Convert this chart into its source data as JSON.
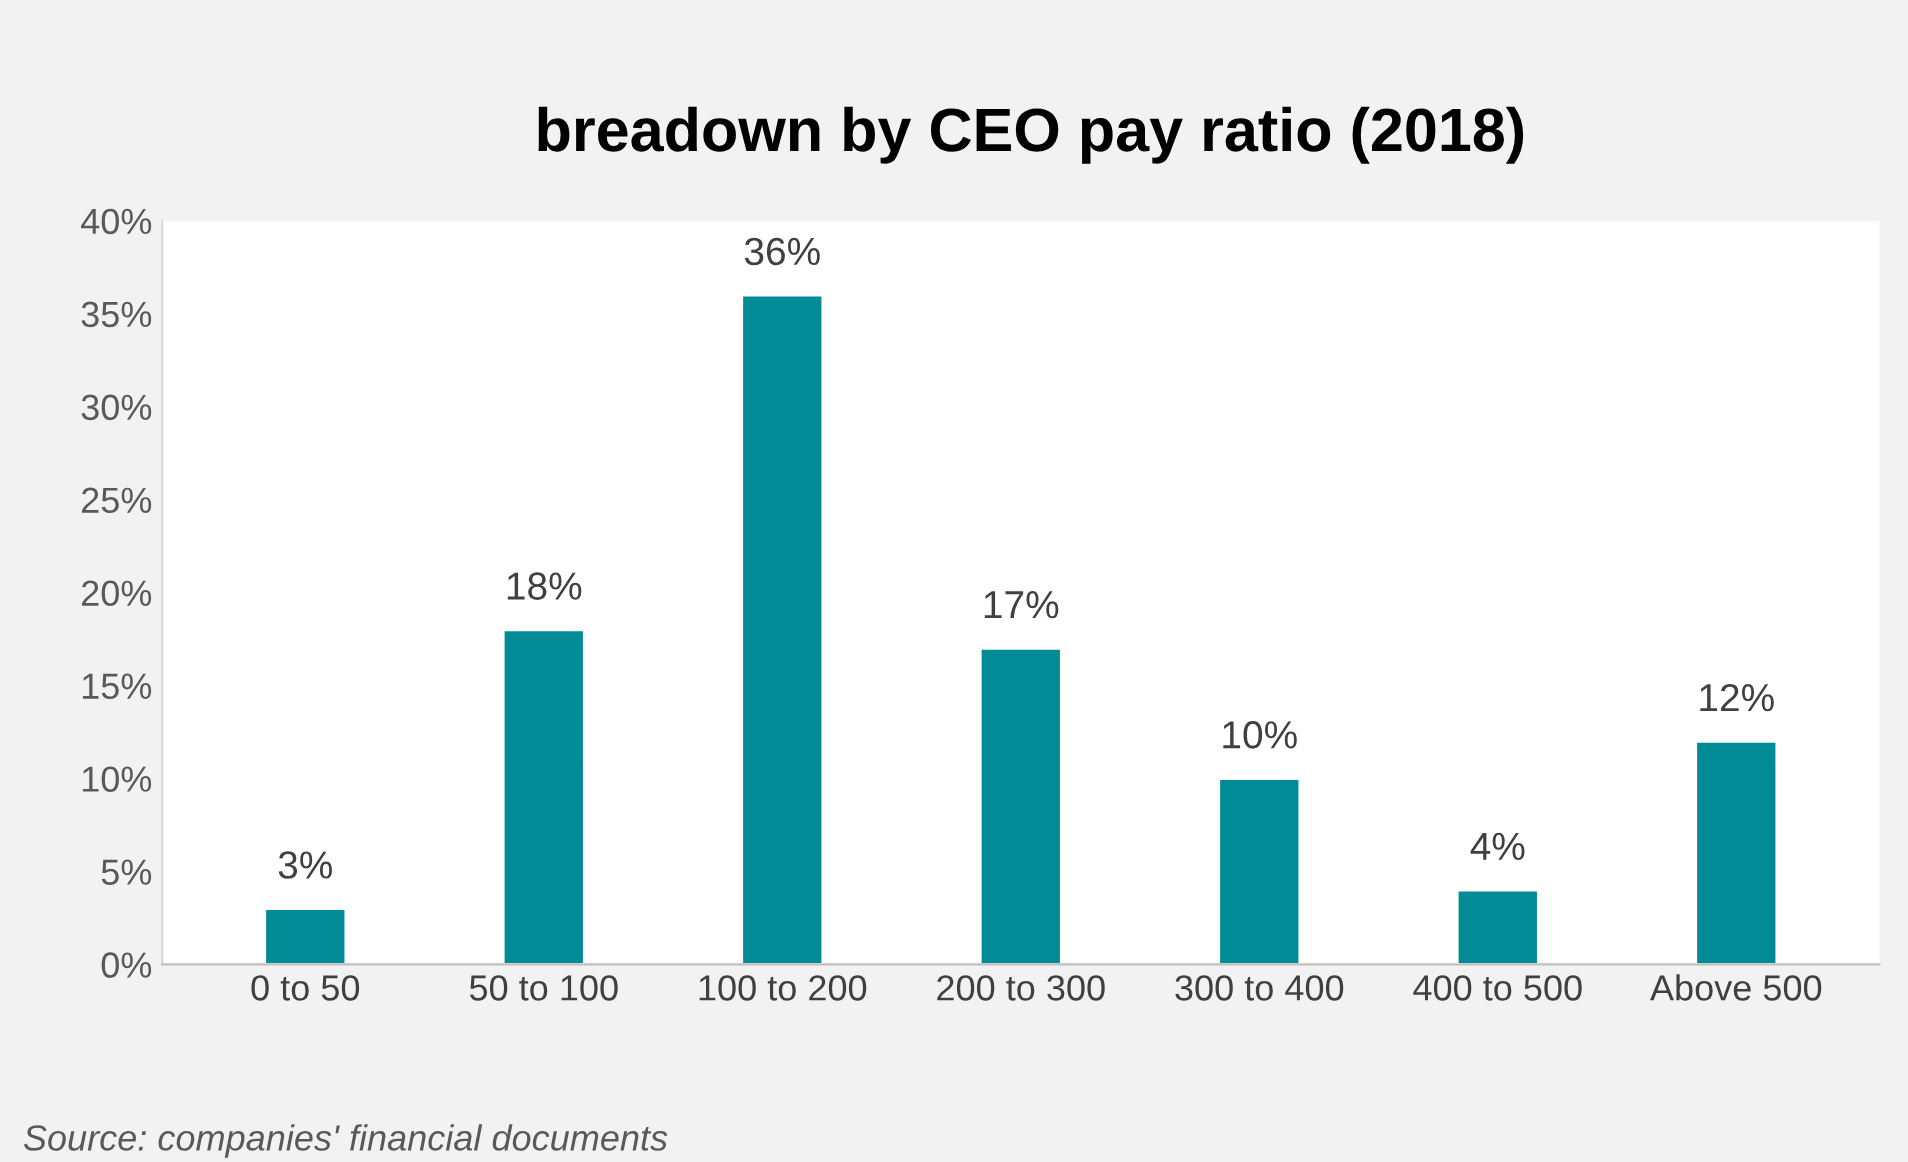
{
  "chart_data": {
    "type": "bar",
    "title": "breadown by CEO pay ratio (2018)",
    "categories": [
      "0 to 50",
      "50 to 100",
      "100 to 200",
      "200 to 300",
      "300 to 400",
      "400 to 500",
      "Above 500"
    ],
    "values": [
      3,
      18,
      36,
      17,
      10,
      4,
      12
    ],
    "value_labels": [
      "3%",
      "18%",
      "36%",
      "17%",
      "10%",
      "4%",
      "12%"
    ],
    "color": "#008b97",
    "ylim": [
      0,
      40
    ],
    "yticks": [
      {
        "value": 0,
        "label": "0%"
      },
      {
        "value": 5,
        "label": "5%"
      },
      {
        "value": 10,
        "label": "10%"
      },
      {
        "value": 15,
        "label": "15%"
      },
      {
        "value": 20,
        "label": "20%"
      },
      {
        "value": 25,
        "label": "25%"
      },
      {
        "value": 30,
        "label": "30%"
      },
      {
        "value": 35,
        "label": "35%"
      },
      {
        "value": 40,
        "label": "40%"
      }
    ],
    "grid": false,
    "annotations": [
      "Source: companies' financial documents"
    ]
  }
}
